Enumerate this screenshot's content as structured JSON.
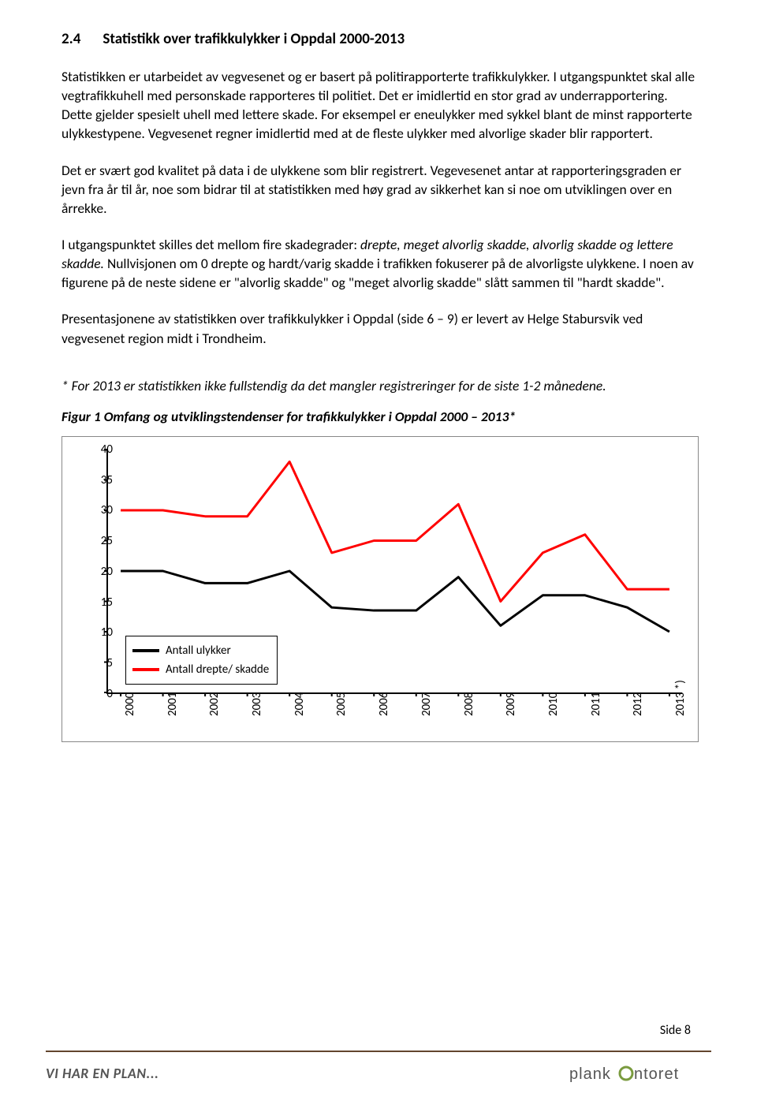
{
  "heading": {
    "number": "2.4",
    "title": "Statistikk over trafikkulykker i Oppdal 2000-2013"
  },
  "paragraphs": {
    "p1": "Statistikken er utarbeidet av vegvesenet og er basert på politirapporterte trafikkulykker. I utgangspunktet skal alle vegtrafikkuhell med personskade rapporteres til politiet. Det er imidlertid en stor grad av underrapportering. Dette gjelder spesielt uhell med lettere skade. For eksempel er eneulykker med sykkel blant de minst rapporterte ulykkestypene. Vegvesenet regner imidlertid med at de fleste ulykker med alvorlige skader blir rapportert.",
    "p2": "Det er svært god kvalitet på data i de ulykkene som blir registrert. Vegevesenet antar at rapporteringsgraden er jevn fra år til år, noe som bidrar til at statistikken med høy grad av sikkerhet kan si noe om utviklingen over en årrekke.",
    "p3a": "I utgangspunktet skilles det mellom fire skadegrader: ",
    "p3b": "drepte, meget alvorlig skadde, alvorlig skadde og lettere skadde.",
    "p3c": " Nullvisjonen om 0 drepte og hardt/varig skadde i trafikken fokuserer på de alvorligste ulykkene. I noen av figurene på de neste sidene er \"alvorlig skadde\" og \"meget alvorlig skadde\" slått sammen til \"hardt skadde\".",
    "p4": "Presentasjonene av statistikken over trafikkulykker i Oppdal (side 6 – 9) er levert av Helge Stabursvik ved vegvesenet region midt i Trondheim."
  },
  "footnote": "* For 2013 er statistikken ikke fullstendig da det mangler registreringer for de siste 1-2 månedene.",
  "figure_title": "Figur 1 Omfang og utviklingstendenser for trafikkulykker i Oppdal 2000 – 2013*",
  "chart": {
    "type": "line",
    "ylim": [
      0,
      40
    ],
    "ytick_step": 5,
    "yticks": [
      0,
      5,
      10,
      15,
      20,
      25,
      30,
      35,
      40
    ],
    "categories": [
      "2000",
      "2001",
      "2002",
      "2003",
      "2004",
      "2005",
      "2006",
      "2007",
      "2008",
      "2009",
      "2010",
      "2011",
      "2012",
      "2013 *)"
    ],
    "series": [
      {
        "name": "Antall ulykker",
        "color": "#000000",
        "line_width": 3,
        "values": [
          20,
          20,
          18,
          18,
          20,
          14,
          13.5,
          13.5,
          19,
          11,
          16,
          16,
          14,
          10
        ]
      },
      {
        "name": "Antall drepte/ skadde",
        "color": "#ff0000",
        "line_width": 3,
        "values": [
          30,
          30,
          29,
          29,
          38,
          23,
          25,
          25,
          31,
          15,
          23,
          26,
          17,
          17
        ]
      }
    ],
    "background_color": "#ffffff",
    "axis_color": "#000000",
    "label_fontsize": 15,
    "legend_position": "lower-left"
  },
  "page_label": "Side 8",
  "footer_left": "VI HAR EN PLAN...",
  "footer_right": "plankontoret"
}
